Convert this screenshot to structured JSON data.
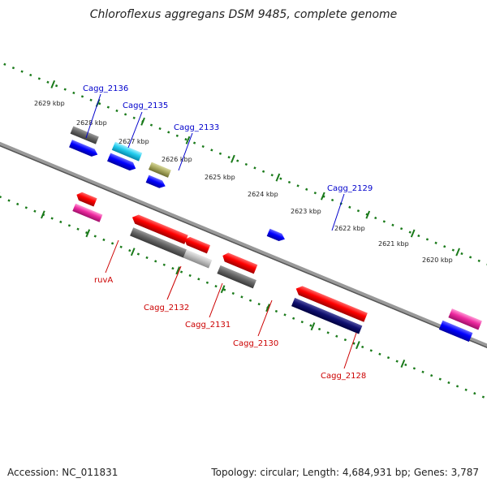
{
  "title": "Chloroflexus aggregans DSM 9485, complete genome",
  "accession": "Accession: NC_011831",
  "summary": "Topology: circular; Length: 4,684,931 bp; Genes: 3,787",
  "colors": {
    "top_label": "#0000cc",
    "bottom_label": "#cc0000",
    "backbone": "#777777",
    "tick": "#1a7a1a"
  },
  "kbp_labels": [
    "2629 kbp",
    "2628 kbp",
    "2627 kbp",
    "2626 kbp",
    "2625 kbp",
    "2624 kbp",
    "2623 kbp",
    "2622 kbp",
    "2621 kbp",
    "2620 kbp"
  ],
  "top_genes": [
    "Cagg_2136",
    "Cagg_2135",
    "Cagg_2133",
    "Cagg_2129"
  ],
  "bottom_genes": [
    "ruvA",
    "Cagg_2132",
    "Cagg_2131",
    "Cagg_2130",
    "Cagg_2128"
  ]
}
